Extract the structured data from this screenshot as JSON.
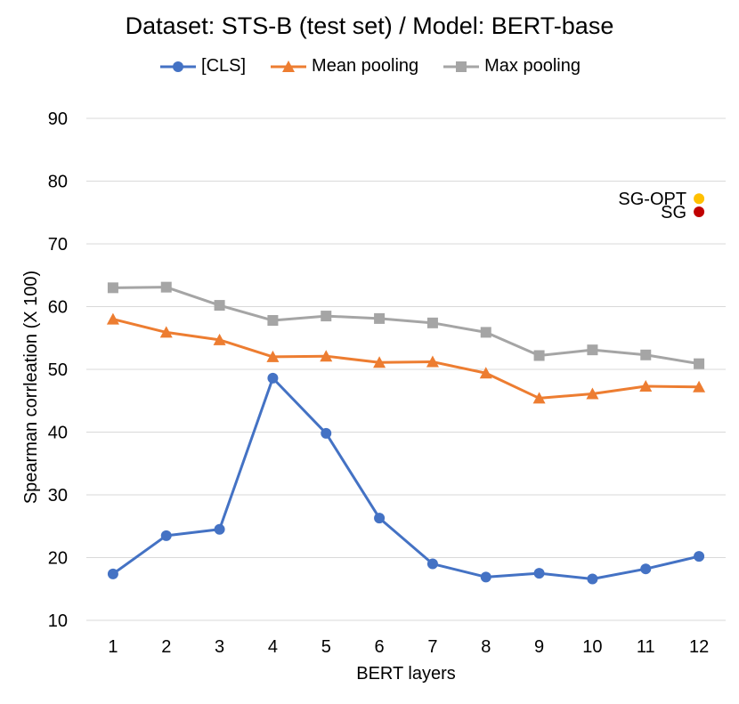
{
  "chart_data": {
    "type": "line",
    "title": "Dataset: STS-B (test set) / Model: BERT-base",
    "xlabel": "BERT layers",
    "ylabel": "Spearman corrleation (X 100)",
    "ylim": [
      10,
      90
    ],
    "yticks": [
      10,
      20,
      30,
      40,
      50,
      60,
      70,
      80,
      90
    ],
    "categories": [
      "1",
      "2",
      "3",
      "4",
      "5",
      "6",
      "7",
      "8",
      "9",
      "10",
      "11",
      "12"
    ],
    "grid": true,
    "legend_position": "top",
    "series": [
      {
        "name": "[CLS]",
        "color": "#4472C4",
        "marker": "circle",
        "values": [
          17.4,
          23.5,
          24.5,
          48.6,
          39.8,
          26.3,
          19.0,
          16.9,
          17.5,
          16.6,
          18.2,
          20.2
        ]
      },
      {
        "name": "Mean pooling",
        "color": "#ED7D31",
        "marker": "triangle",
        "values": [
          58.0,
          55.9,
          54.7,
          52.0,
          52.1,
          51.1,
          51.2,
          49.4,
          45.4,
          46.1,
          47.3,
          47.2
        ]
      },
      {
        "name": "Max pooling",
        "color": "#A5A5A5",
        "marker": "square",
        "values": [
          63.0,
          63.1,
          60.2,
          57.8,
          58.5,
          58.1,
          57.4,
          55.9,
          52.2,
          53.1,
          52.3,
          50.9
        ]
      }
    ],
    "points": [
      {
        "label": "SG-OPT",
        "x": "12",
        "y": 77.2,
        "color": "#FFC000"
      },
      {
        "label": "SG",
        "x": "12",
        "y": 75.1,
        "color": "#C00000"
      }
    ]
  }
}
